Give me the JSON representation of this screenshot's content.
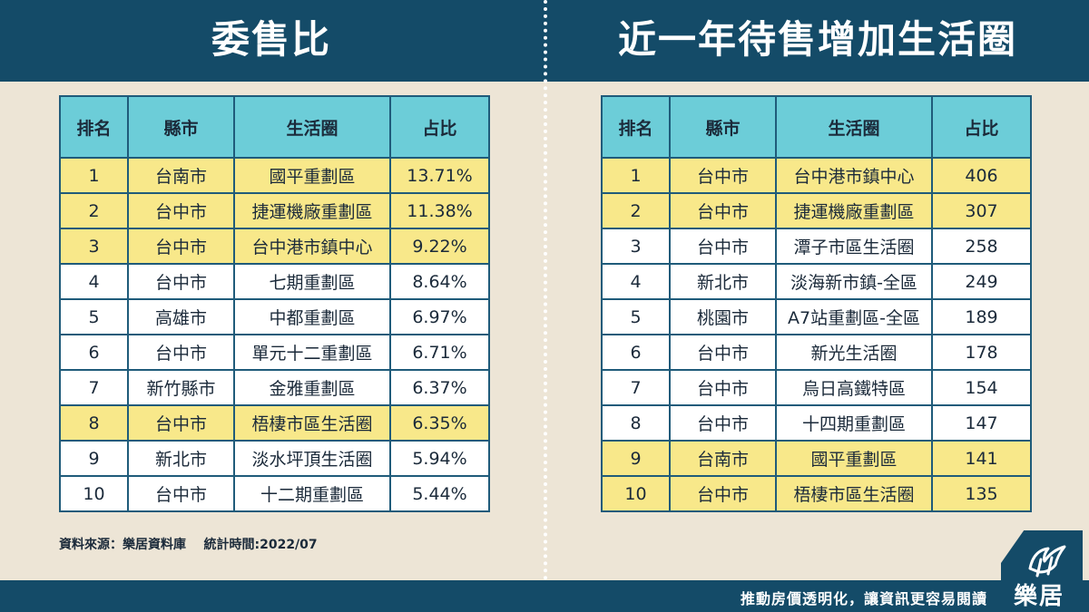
{
  "left": {
    "title": "委售比",
    "headers": [
      "排名",
      "縣市",
      "生活圈",
      "占比"
    ],
    "rows": [
      {
        "rank": "1",
        "city": "台南市",
        "area": "國平重劃區",
        "value": "13.71%",
        "highlight": true
      },
      {
        "rank": "2",
        "city": "台中市",
        "area": "捷運機廠重劃區",
        "value": "11.38%",
        "highlight": true
      },
      {
        "rank": "3",
        "city": "台中市",
        "area": "台中港市鎮中心",
        "value": "9.22%",
        "highlight": true
      },
      {
        "rank": "4",
        "city": "台中市",
        "area": "七期重劃區",
        "value": "8.64%",
        "highlight": false
      },
      {
        "rank": "5",
        "city": "高雄市",
        "area": "中都重劃區",
        "value": "6.97%",
        "highlight": false
      },
      {
        "rank": "6",
        "city": "台中市",
        "area": "單元十二重劃區",
        "value": "6.71%",
        "highlight": false
      },
      {
        "rank": "7",
        "city": "新竹縣市",
        "area": "金雅重劃區",
        "value": "6.37%",
        "highlight": false
      },
      {
        "rank": "8",
        "city": "台中市",
        "area": "梧棲市區生活圈",
        "value": "6.35%",
        "highlight": true
      },
      {
        "rank": "9",
        "city": "新北市",
        "area": "淡水坪頂生活圈",
        "value": "5.94%",
        "highlight": false
      },
      {
        "rank": "10",
        "city": "台中市",
        "area": "十二期重劃區",
        "value": "5.44%",
        "highlight": false
      }
    ]
  },
  "right": {
    "title": "近一年待售增加生活圈",
    "headers": [
      "排名",
      "縣市",
      "生活圈",
      "占比"
    ],
    "rows": [
      {
        "rank": "1",
        "city": "台中市",
        "area": "台中港市鎮中心",
        "value": "406",
        "highlight": true
      },
      {
        "rank": "2",
        "city": "台中市",
        "area": "捷運機廠重劃區",
        "value": "307",
        "highlight": true
      },
      {
        "rank": "3",
        "city": "台中市",
        "area": "潭子市區生活圈",
        "value": "258",
        "highlight": false
      },
      {
        "rank": "4",
        "city": "新北市",
        "area": "淡海新市鎮-全區",
        "value": "249",
        "highlight": false
      },
      {
        "rank": "5",
        "city": "桃園市",
        "area": "A7站重劃區-全區",
        "value": "189",
        "highlight": false
      },
      {
        "rank": "6",
        "city": "台中市",
        "area": "新光生活圈",
        "value": "178",
        "highlight": false
      },
      {
        "rank": "7",
        "city": "台中市",
        "area": "烏日高鐵特區",
        "value": "154",
        "highlight": false
      },
      {
        "rank": "8",
        "city": "台中市",
        "area": "十四期重劃區",
        "value": "147",
        "highlight": false
      },
      {
        "rank": "9",
        "city": "台南市",
        "area": "國平重劃區",
        "value": "141",
        "highlight": true
      },
      {
        "rank": "10",
        "city": "台中市",
        "area": "梧棲市區生活圈",
        "value": "135",
        "highlight": true
      }
    ]
  },
  "source": "資料來源：樂居資料庫    統計時間:2022/07",
  "footer": {
    "slogan": "推動房價透明化，讓資訊更容易閱讀",
    "logo_text": "樂居"
  },
  "colors": {
    "header_bg": "#144b68",
    "table_header_bg": "#6ccdd8",
    "highlight_row": "#f8e88a",
    "page_bg": "#ede5d6"
  },
  "icons": {
    "logo": "leju-bird-logo-icon"
  }
}
